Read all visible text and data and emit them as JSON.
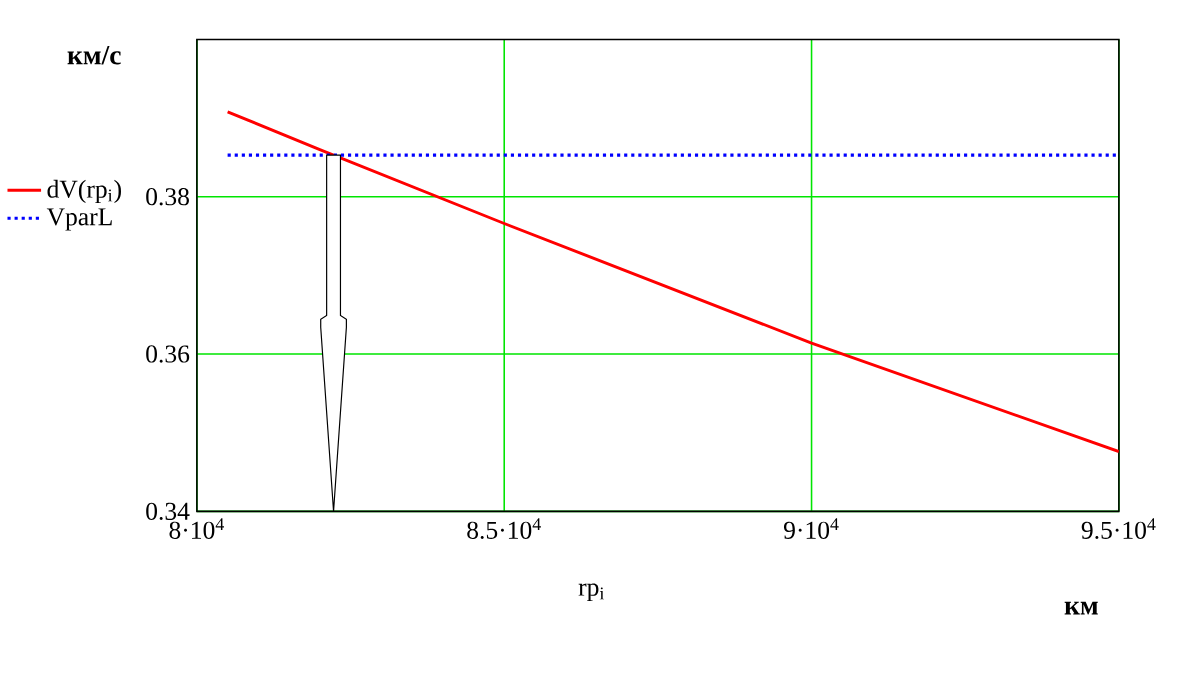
{
  "chart_data": {
    "type": "line",
    "xlabel": "rp$_{i}$",
    "ylabel": "км/с",
    "annotations": [
      "км"
    ],
    "xlim": [
      80000,
      95000
    ],
    "ylim": [
      0.34,
      0.4
    ],
    "xticks": [
      {
        "value": 80000,
        "label": "8·10$^{4}$"
      },
      {
        "value": 85000,
        "label": "8.5·10$^{4}$"
      },
      {
        "value": 90000,
        "label": "9·10$^{4}$"
      },
      {
        "value": 95000,
        "label": "9.5·10$^{4}$"
      }
    ],
    "yticks": [
      0.34,
      0.36,
      0.38
    ],
    "grid": true,
    "legend": "left",
    "series": [
      {
        "name": "dV(rp$_{i}$)",
        "color": "#ff0000",
        "line_style": "solid",
        "x": [
          80500,
          82000,
          85000,
          90000,
          95000
        ],
        "values": [
          0.3908,
          0.386,
          0.3766,
          0.3614,
          0.3476
        ]
      },
      {
        "name": "VparL",
        "color": "#0000ff",
        "line_style": "dotted",
        "x": [
          80500,
          95000
        ],
        "values": [
          0.3853,
          0.3853
        ]
      }
    ]
  }
}
